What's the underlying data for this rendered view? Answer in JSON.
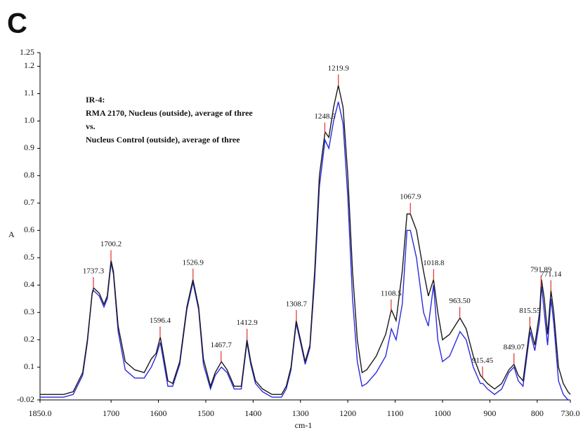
{
  "chart_data": {
    "type": "line",
    "panel_label": "C",
    "annotation_lines": [
      "IR-4:",
      "RMA 2170, Nucleus (outside), average of three",
      "vs.",
      "Nucleus Control (outside), average of three"
    ],
    "x_label": "cm-1",
    "y_label": "A",
    "xlim": [
      1850,
      730
    ],
    "ylim": [
      -0.02,
      1.25
    ],
    "xticks": [
      {
        "value": 1850,
        "label": "1850.0"
      },
      1700,
      1600,
      1500,
      1400,
      1300,
      1200,
      1100,
      1000,
      900,
      800,
      {
        "value": 730,
        "label": "730.0"
      }
    ],
    "yticks": [
      -0.02,
      0.1,
      0.2,
      0.3,
      0.4,
      0.5,
      0.6,
      0.7,
      0.8,
      0.9,
      {
        "value": 1,
        "label": "1.0"
      },
      1.1,
      1.2,
      1.25
    ],
    "x": [
      1850,
      1800,
      1780,
      1760,
      1750,
      1740,
      1737,
      1725,
      1715,
      1708,
      1700,
      1695,
      1685,
      1670,
      1650,
      1630,
      1615,
      1605,
      1596,
      1590,
      1580,
      1570,
      1555,
      1540,
      1527,
      1515,
      1505,
      1490,
      1480,
      1467,
      1455,
      1440,
      1425,
      1413,
      1405,
      1395,
      1380,
      1360,
      1340,
      1330,
      1320,
      1309,
      1300,
      1290,
      1280,
      1270,
      1260,
      1248,
      1240,
      1230,
      1220,
      1210,
      1200,
      1190,
      1180,
      1170,
      1160,
      1140,
      1120,
      1108,
      1098,
      1085,
      1075,
      1068,
      1055,
      1040,
      1030,
      1019,
      1010,
      1000,
      985,
      963,
      950,
      935,
      920,
      915,
      905,
      890,
      875,
      860,
      849,
      840,
      830,
      815,
      805,
      795,
      791,
      785,
      778,
      771,
      765,
      755,
      745,
      735,
      730
    ],
    "series": [
      {
        "color": "#1a1a1a",
        "values": [
          0.0,
          0.0,
          0.01,
          0.08,
          0.2,
          0.37,
          0.39,
          0.37,
          0.33,
          0.36,
          0.49,
          0.45,
          0.25,
          0.12,
          0.09,
          0.08,
          0.13,
          0.15,
          0.21,
          0.15,
          0.05,
          0.04,
          0.12,
          0.32,
          0.42,
          0.32,
          0.13,
          0.03,
          0.08,
          0.12,
          0.09,
          0.03,
          0.03,
          0.2,
          0.12,
          0.05,
          0.02,
          0.0,
          0.0,
          0.03,
          0.1,
          0.27,
          0.2,
          0.12,
          0.18,
          0.45,
          0.8,
          0.96,
          0.94,
          1.05,
          1.13,
          1.05,
          0.8,
          0.45,
          0.2,
          0.08,
          0.09,
          0.14,
          0.22,
          0.31,
          0.27,
          0.45,
          0.66,
          0.66,
          0.6,
          0.45,
          0.36,
          0.42,
          0.3,
          0.2,
          0.22,
          0.28,
          0.24,
          0.14,
          0.07,
          0.06,
          0.04,
          0.02,
          0.04,
          0.09,
          0.11,
          0.07,
          0.05,
          0.25,
          0.18,
          0.3,
          0.42,
          0.35,
          0.22,
          0.38,
          0.3,
          0.1,
          0.04,
          0.01,
          0.0
        ]
      },
      {
        "color": "#2a2ae0",
        "values": [
          -0.01,
          -0.01,
          0.0,
          0.07,
          0.19,
          0.37,
          0.38,
          0.36,
          0.32,
          0.35,
          0.48,
          0.44,
          0.23,
          0.09,
          0.06,
          0.06,
          0.1,
          0.14,
          0.19,
          0.13,
          0.03,
          0.03,
          0.11,
          0.31,
          0.41,
          0.31,
          0.11,
          0.02,
          0.07,
          0.1,
          0.08,
          0.02,
          0.02,
          0.19,
          0.11,
          0.04,
          0.01,
          -0.01,
          -0.01,
          0.02,
          0.09,
          0.26,
          0.19,
          0.11,
          0.17,
          0.42,
          0.76,
          0.93,
          0.9,
          1.0,
          1.07,
          0.99,
          0.72,
          0.35,
          0.12,
          0.03,
          0.04,
          0.08,
          0.14,
          0.24,
          0.2,
          0.33,
          0.6,
          0.6,
          0.5,
          0.3,
          0.25,
          0.4,
          0.2,
          0.12,
          0.14,
          0.23,
          0.2,
          0.1,
          0.04,
          0.04,
          0.02,
          0.0,
          0.02,
          0.08,
          0.1,
          0.05,
          0.03,
          0.23,
          0.16,
          0.27,
          0.4,
          0.3,
          0.18,
          0.35,
          0.26,
          0.05,
          0.0,
          -0.02,
          -0.02
        ]
      }
    ],
    "peak_color": "#e03030",
    "peaks": [
      1737.3,
      1700.2,
      1596.4,
      1526.9,
      1467.7,
      1412.9,
      1308.7,
      1248.5,
      1219.9,
      1108.5,
      1067.9,
      1018.8,
      {
        "value": 963.5,
        "label": "963.50"
      },
      915.45,
      849.07,
      815.55,
      791.89,
      771.14
    ]
  }
}
